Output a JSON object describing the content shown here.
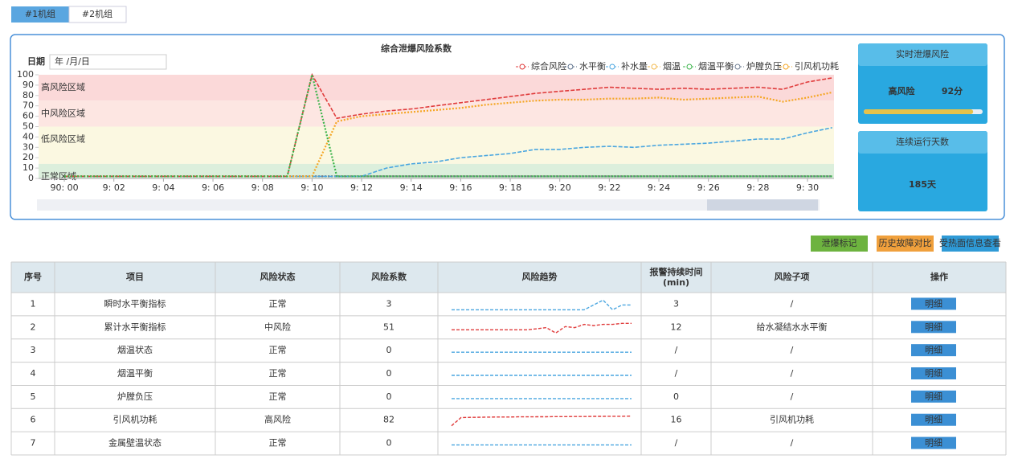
{
  "tabs": [
    "#1机组",
    "#2机组"
  ],
  "date_label": "日期",
  "date_placeholder": "年 /月/日",
  "chart_data": {
    "type": "line",
    "title": "综合泄爆风险系数",
    "x": [
      0,
      1,
      2,
      3,
      4,
      5,
      6,
      7,
      8,
      9,
      10,
      11,
      12,
      13,
      14,
      15,
      16,
      17,
      18,
      19,
      20,
      21,
      22,
      23,
      24,
      25,
      26,
      27,
      28,
      29,
      30,
      31
    ],
    "xlim": [
      -1.04,
      31.07
    ],
    "xticks": [
      {
        "value": 0,
        "label": "90: 00"
      },
      {
        "value": 2,
        "label": "9: 02"
      },
      {
        "value": 4,
        "label": "9: 04"
      },
      {
        "value": 6,
        "label": "9: 06"
      },
      {
        "value": 8,
        "label": "9: 08"
      },
      {
        "value": 10,
        "label": "9: 10"
      },
      {
        "value": 12,
        "label": "9: 12"
      },
      {
        "value": 14,
        "label": "9: 14"
      },
      {
        "value": 16,
        "label": "9: 16"
      },
      {
        "value": 18,
        "label": "9: 18"
      },
      {
        "value": 20,
        "label": "9: 20"
      },
      {
        "value": 22,
        "label": "9: 22"
      },
      {
        "value": 24,
        "label": "9: 24"
      },
      {
        "value": 26,
        "label": "9: 26"
      },
      {
        "value": 28,
        "label": "9: 28"
      },
      {
        "value": 30,
        "label": "9: 30"
      }
    ],
    "ylim": [
      0,
      100
    ],
    "yticks": [
      0,
      10,
      20,
      30,
      40,
      50,
      60,
      70,
      80,
      90,
      100
    ],
    "bands": [
      {
        "label": "高风险区域",
        "from": 75,
        "to": 100,
        "color": "#fbd9d9"
      },
      {
        "label": "中风险区域",
        "from": 50,
        "to": 75,
        "color": "#fde6e2"
      },
      {
        "label": "低风险区域",
        "from": 14,
        "to": 50,
        "color": "#fbf8e1"
      },
      {
        "label": "正常区域",
        "from": 0,
        "to": 14,
        "color": "#dcefdc"
      }
    ],
    "legend": "top-right",
    "series": [
      {
        "name": "综合风险",
        "color": "#e03c3c",
        "dash": "dashed",
        "values": [
          2,
          2,
          2,
          2,
          2,
          2,
          2,
          2,
          2,
          2,
          100,
          58,
          62,
          65,
          67,
          70,
          73,
          76,
          79,
          82,
          84,
          86,
          88,
          87,
          86,
          87,
          86,
          87,
          88,
          86,
          93,
          97
        ]
      },
      {
        "name": "水平衡",
        "color": "#5b6f8a",
        "dash": "dotted",
        "values": [
          2,
          2,
          2,
          2,
          2,
          2,
          2,
          2,
          2,
          2,
          2,
          2,
          2,
          2,
          2,
          2,
          2,
          2,
          2,
          2,
          2,
          2,
          2,
          2,
          2,
          2,
          2,
          2,
          2,
          2,
          2,
          2
        ]
      },
      {
        "name": "补水量",
        "color": "#4aa6e0",
        "dash": "dashed",
        "values": [
          2,
          2,
          2,
          2,
          2,
          2,
          2,
          2,
          2,
          2,
          2,
          2,
          2,
          10,
          14,
          16,
          20,
          22,
          24,
          28,
          28,
          30,
          31,
          30,
          32,
          33,
          34,
          36,
          38,
          38,
          44,
          49
        ]
      },
      {
        "name": "烟温",
        "color": "#f2b84b",
        "dash": "dotted",
        "values": [
          2,
          2,
          2,
          2,
          2,
          2,
          2,
          2,
          2,
          2,
          2,
          2,
          2,
          2,
          2,
          2,
          2,
          2,
          2,
          2,
          2,
          2,
          2,
          2,
          2,
          2,
          2,
          2,
          2,
          2,
          2,
          2
        ]
      },
      {
        "name": "烟温平衡",
        "color": "#3cb44b",
        "dash": "dotted",
        "values": [
          2,
          2,
          2,
          2,
          2,
          2,
          2,
          2,
          2,
          2,
          100,
          2,
          2,
          2,
          2,
          2,
          2,
          2,
          2,
          2,
          2,
          2,
          2,
          2,
          2,
          2,
          2,
          2,
          2,
          2,
          2,
          2
        ]
      },
      {
        "name": "炉膛负压",
        "color": "#6e7d93",
        "dash": "dotted",
        "values": [
          2,
          2,
          2,
          2,
          2,
          2,
          2,
          2,
          2,
          2,
          2,
          2,
          2,
          2,
          2,
          2,
          2,
          2,
          2,
          2,
          2,
          2,
          2,
          2,
          2,
          2,
          2,
          2,
          2,
          2,
          2,
          2
        ]
      },
      {
        "name": "引风机功耗",
        "color": "#f5a623",
        "dash": "dotted",
        "values": [
          2,
          2,
          2,
          2,
          2,
          2,
          2,
          2,
          2,
          2,
          2,
          55,
          60,
          62,
          64,
          66,
          68,
          71,
          73,
          75,
          76,
          76,
          77,
          77,
          78,
          76,
          77,
          78,
          79,
          74,
          78,
          83
        ]
      }
    ]
  },
  "risk_panel": {
    "title": "实时泄爆风险",
    "level": "高风险",
    "score": {
      "value": 92,
      "label": "92分"
    },
    "days_title": "连续运行天数",
    "days_label": "185天"
  },
  "buttons": [
    "泄爆标记",
    "历史故障对比",
    "受热面信息查看"
  ],
  "table": {
    "headers": [
      "序号",
      "项目",
      "风险状态",
      "风险系数",
      "风险趋势",
      [
        "报警持续时间",
        "(min)"
      ],
      "风险子项",
      "操作"
    ],
    "rows": [
      {
        "alert": false,
        "cells": [
          1,
          "瞬时水平衡指标",
          "正常",
          3,
          3,
          "/",
          "明细"
        ],
        "trend": [
          2,
          2,
          2,
          2,
          2,
          2,
          2,
          2,
          2,
          2,
          2,
          2,
          2,
          2,
          2,
          3,
          4,
          2,
          3,
          3
        ]
      },
      {
        "alert": true,
        "cells": [
          2,
          "累计水平衡指标",
          "中风险",
          51,
          12,
          "给水凝结水水平衡",
          "明细"
        ],
        "trend": [
          45,
          45,
          45,
          45,
          45,
          45,
          45,
          45,
          45,
          46,
          47,
          42,
          48,
          47,
          50,
          49,
          50,
          50,
          51,
          51
        ]
      },
      {
        "alert": false,
        "cells": [
          3,
          "烟温状态",
          "正常",
          0,
          "/",
          "/",
          "明细"
        ],
        "trend": [
          0,
          0,
          0,
          0,
          0,
          0,
          0,
          0,
          0,
          0,
          0,
          0,
          0,
          0,
          0,
          0,
          0,
          0,
          0,
          0
        ]
      },
      {
        "alert": false,
        "cells": [
          4,
          "烟温平衡",
          "正常",
          0,
          "/",
          "/",
          "明细"
        ],
        "trend": [
          0,
          0,
          0,
          0,
          0,
          0,
          0,
          0,
          0,
          0,
          0,
          0,
          0,
          0,
          0,
          0,
          0,
          0,
          0,
          0
        ]
      },
      {
        "alert": false,
        "cells": [
          5,
          "炉膛负压",
          "正常",
          0,
          0,
          "/",
          "明细"
        ],
        "trend": [
          0,
          0,
          0,
          0,
          0,
          0,
          0,
          0,
          0,
          0,
          0,
          0,
          0,
          0,
          0,
          0,
          0,
          0,
          0,
          0
        ]
      },
      {
        "alert": true,
        "cells": [
          6,
          "引风机功耗",
          "高风险",
          82,
          16,
          "引风机功耗",
          "明细"
        ],
        "trend": [
          2,
          70,
          72,
          73,
          74,
          75,
          75,
          76,
          76,
          77,
          77,
          78,
          78,
          79,
          79,
          80,
          80,
          81,
          81,
          82
        ]
      },
      {
        "alert": false,
        "cells": [
          7,
          "金属壁温状态",
          "正常",
          0,
          "/",
          "/",
          "明细"
        ],
        "trend": [
          0,
          0,
          0,
          0,
          0,
          0,
          0,
          0,
          0,
          0,
          0,
          0,
          0,
          0,
          0,
          0,
          0,
          0,
          0,
          0
        ]
      }
    ]
  }
}
